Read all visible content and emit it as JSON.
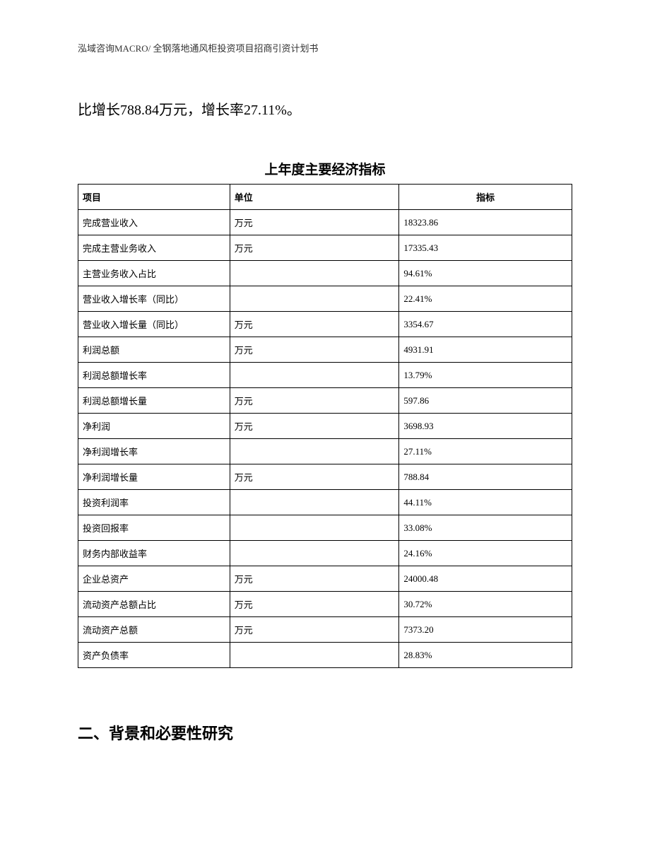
{
  "header": "泓域咨询MACRO/ 全钢落地通风柜投资项目招商引资计划书",
  "bodyText": "比增长788.84万元，增长率27.11%。",
  "tableTitle": "上年度主要经济指标",
  "table": {
    "columns": [
      "项目",
      "单位",
      "指标"
    ],
    "rows": [
      [
        "完成营业收入",
        "万元",
        "18323.86"
      ],
      [
        "完成主营业务收入",
        "万元",
        "17335.43"
      ],
      [
        "主营业务收入占比",
        "",
        "94.61%"
      ],
      [
        "营业收入增长率（同比）",
        "",
        "22.41%"
      ],
      [
        "营业收入增长量（同比）",
        "万元",
        "3354.67"
      ],
      [
        "利润总额",
        "万元",
        "4931.91"
      ],
      [
        "利润总额增长率",
        "",
        "13.79%"
      ],
      [
        "利润总额增长量",
        "万元",
        "597.86"
      ],
      [
        "净利润",
        "万元",
        "3698.93"
      ],
      [
        "净利润增长率",
        "",
        "27.11%"
      ],
      [
        "净利润增长量",
        "万元",
        "788.84"
      ],
      [
        "投资利润率",
        "",
        "44.11%"
      ],
      [
        "投资回报率",
        "",
        "33.08%"
      ],
      [
        "财务内部收益率",
        "",
        "24.16%"
      ],
      [
        "企业总资产",
        "万元",
        "24000.48"
      ],
      [
        "流动资产总额占比",
        "万元",
        "30.72%"
      ],
      [
        "流动资产总额",
        "万元",
        "7373.20"
      ],
      [
        "资产负债率",
        "",
        "28.83%"
      ]
    ]
  },
  "sectionHeading": "二、背景和必要性研究"
}
